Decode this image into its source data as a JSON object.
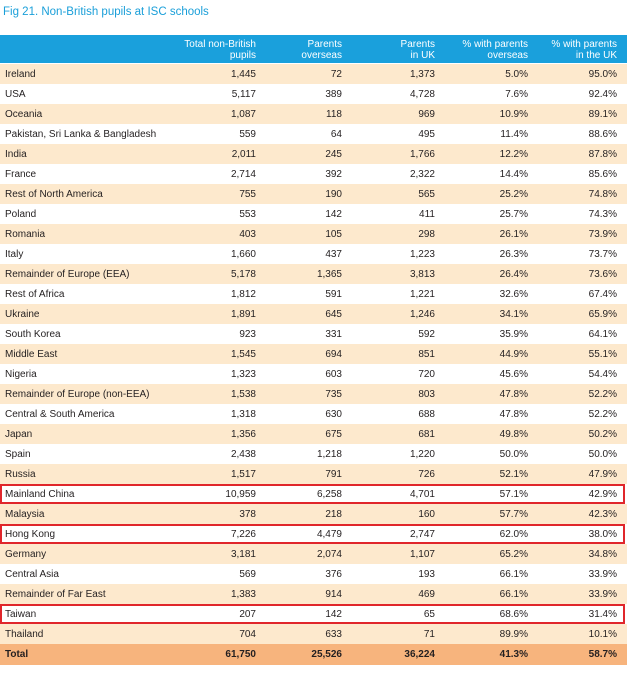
{
  "title": "Fig 21. Non-British pupils at ISC schools",
  "header": {
    "col1": [
      "Total non-British",
      "pupils"
    ],
    "col2": [
      "Parents",
      "overseas"
    ],
    "col3": [
      "Parents",
      "in UK"
    ],
    "col4": [
      "% with parents",
      "overseas"
    ],
    "col5": [
      "% with parents",
      "in the UK"
    ]
  },
  "rows": [
    [
      "Ireland",
      "1,445",
      "72",
      "1,373",
      "5.0%",
      "95.0%"
    ],
    [
      "USA",
      "5,117",
      "389",
      "4,728",
      "7.6%",
      "92.4%"
    ],
    [
      "Oceania",
      "1,087",
      "118",
      "969",
      "10.9%",
      "89.1%"
    ],
    [
      "Pakistan, Sri Lanka & Bangladesh",
      "559",
      "64",
      "495",
      "11.4%",
      "88.6%"
    ],
    [
      "India",
      "2,011",
      "245",
      "1,766",
      "12.2%",
      "87.8%"
    ],
    [
      "France",
      "2,714",
      "392",
      "2,322",
      "14.4%",
      "85.6%"
    ],
    [
      "Rest of North America",
      "755",
      "190",
      "565",
      "25.2%",
      "74.8%"
    ],
    [
      "Poland",
      "553",
      "142",
      "411",
      "25.7%",
      "74.3%"
    ],
    [
      "Romania",
      "403",
      "105",
      "298",
      "26.1%",
      "73.9%"
    ],
    [
      "Italy",
      "1,660",
      "437",
      "1,223",
      "26.3%",
      "73.7%"
    ],
    [
      "Remainder of Europe (EEA)",
      "5,178",
      "1,365",
      "3,813",
      "26.4%",
      "73.6%"
    ],
    [
      "Rest of Africa",
      "1,812",
      "591",
      "1,221",
      "32.6%",
      "67.4%"
    ],
    [
      "Ukraine",
      "1,891",
      "645",
      "1,246",
      "34.1%",
      "65.9%"
    ],
    [
      "South Korea",
      "923",
      "331",
      "592",
      "35.9%",
      "64.1%"
    ],
    [
      "Middle East",
      "1,545",
      "694",
      "851",
      "44.9%",
      "55.1%"
    ],
    [
      "Nigeria",
      "1,323",
      "603",
      "720",
      "45.6%",
      "54.4%"
    ],
    [
      "Remainder of Europe (non-EEA)",
      "1,538",
      "735",
      "803",
      "47.8%",
      "52.2%"
    ],
    [
      "Central & South America",
      "1,318",
      "630",
      "688",
      "47.8%",
      "52.2%"
    ],
    [
      "Japan",
      "1,356",
      "675",
      "681",
      "49.8%",
      "50.2%"
    ],
    [
      "Spain",
      "2,438",
      "1,218",
      "1,220",
      "50.0%",
      "50.0%"
    ],
    [
      "Russia",
      "1,517",
      "791",
      "726",
      "52.1%",
      "47.9%"
    ],
    [
      "Mainland China",
      "10,959",
      "6,258",
      "4,701",
      "57.1%",
      "42.9%"
    ],
    [
      "Malaysia",
      "378",
      "218",
      "160",
      "57.7%",
      "42.3%"
    ],
    [
      "Hong Kong",
      "7,226",
      "4,479",
      "2,747",
      "62.0%",
      "38.0%"
    ],
    [
      "Germany",
      "3,181",
      "2,074",
      "1,107",
      "65.2%",
      "34.8%"
    ],
    [
      "Central Asia",
      "569",
      "376",
      "193",
      "66.1%",
      "33.9%"
    ],
    [
      "Remainder of Far East",
      "1,383",
      "914",
      "469",
      "66.1%",
      "33.9%"
    ],
    [
      "Taiwan",
      "207",
      "142",
      "65",
      "68.6%",
      "31.4%"
    ],
    [
      "Thailand",
      "704",
      "633",
      "71",
      "89.9%",
      "10.1%"
    ]
  ],
  "total": [
    "Total",
    "61,750",
    "25,526",
    "36,224",
    "41.3%",
    "58.7%"
  ],
  "highlighted_rows": [
    "Mainland China",
    "Hong Kong",
    "Taiwan"
  ],
  "colors": {
    "title": "#1a9fd9",
    "header_bg": "#1aa0dc",
    "alt_row_bg": "#fde9cd",
    "total_bg": "#f7b47d",
    "highlight_border": "#e0262b"
  }
}
